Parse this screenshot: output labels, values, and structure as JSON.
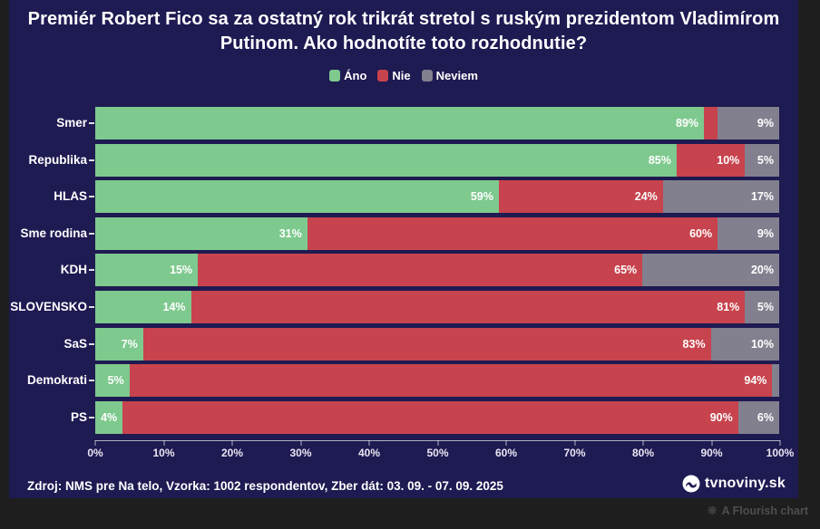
{
  "header": {
    "title": "Premiér Robert Fico sa za ostatný rok trikrát stretol s ruským prezidentom Vladimírom Putinom. Ako hodnotíte toto rozhodnutie?"
  },
  "chart_data": {
    "type": "bar",
    "orientation": "horizontal",
    "stacked": true,
    "title": "Premiér Robert Fico sa za ostatný rok trikrát stretol s ruským prezidentom Vladimírom Putinom. Ako hodnotíte toto rozhodnutie?",
    "categories": [
      "Smer",
      "Republika",
      "HLAS",
      "Sme rodina",
      "KDH",
      "SLOVENSKO",
      "SaS",
      "Demokrati",
      "PS"
    ],
    "series": [
      {
        "name": "Áno",
        "color": "#7EC98E",
        "values": [
          89,
          85,
          59,
          31,
          15,
          14,
          7,
          5,
          4
        ]
      },
      {
        "name": "Nie",
        "color": "#C7434D",
        "values": [
          2,
          10,
          24,
          60,
          65,
          81,
          83,
          94,
          90
        ]
      },
      {
        "name": "Neviem",
        "color": "#82808E",
        "values": [
          9,
          5,
          17,
          9,
          20,
          5,
          10,
          1,
          6
        ]
      }
    ],
    "value_suffix": "%",
    "show_label_min": 4,
    "xlim": [
      0,
      100
    ],
    "x_ticks": [
      "0%",
      "10%",
      "20%",
      "30%",
      "40%",
      "50%",
      "60%",
      "70%",
      "80%",
      "90%",
      "100%"
    ],
    "legend_position": "top",
    "grid": false
  },
  "footer": {
    "source": "Zdroj: NMS pre Na telo, Vzorka: 1002 respondentov, Zber dát: 03. 09. - 07. 09. 2025",
    "brand": "tvnoviny.sk"
  },
  "attribution": {
    "label": "A Flourish chart"
  },
  "colors": {
    "card_bg": "#1E1A52",
    "page_bg": "#1E1E1E",
    "text": "#FFFFFF"
  }
}
